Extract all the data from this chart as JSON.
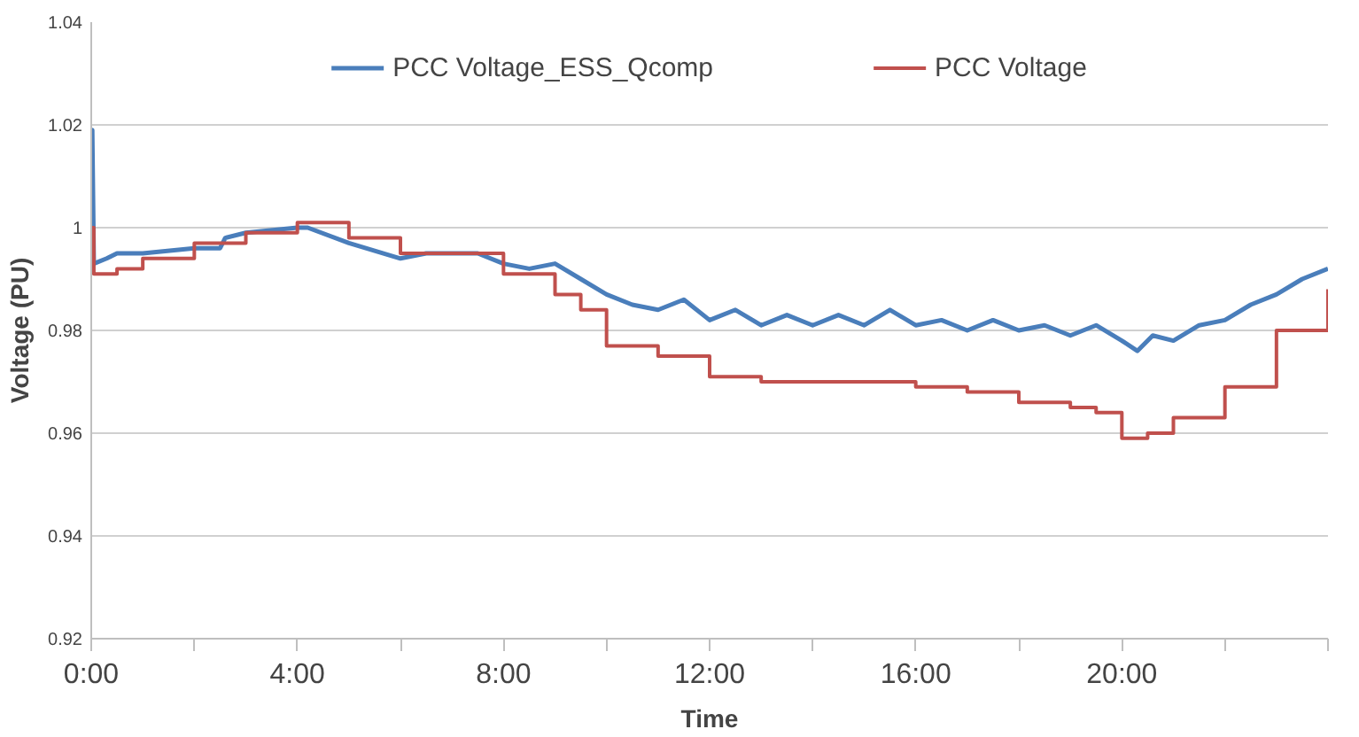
{
  "chart_data": {
    "type": "line",
    "xlabel": "Time",
    "ylabel": "Voltage (PU)",
    "xlim": [
      0,
      24
    ],
    "ylim": [
      0.92,
      1.04
    ],
    "xticks": [
      {
        "value": 0,
        "label": "0:00"
      },
      {
        "value": 2,
        "label": null
      },
      {
        "value": 4,
        "label": "4:00"
      },
      {
        "value": 6,
        "label": null
      },
      {
        "value": 8,
        "label": "8:00"
      },
      {
        "value": 10,
        "label": null
      },
      {
        "value": 12,
        "label": "12:00"
      },
      {
        "value": 14,
        "label": null
      },
      {
        "value": 16,
        "label": "16:00"
      },
      {
        "value": 18,
        "label": null
      },
      {
        "value": 20,
        "label": "20:00"
      },
      {
        "value": 22,
        "label": null
      },
      {
        "value": 24,
        "label": null
      }
    ],
    "yticks": [
      0.92,
      0.94,
      0.96,
      0.98,
      1,
      1.02,
      1.04
    ],
    "grid": "y",
    "legend": "top",
    "marker": "none",
    "line_style": "solid",
    "series": [
      {
        "name": "PCC Voltage_ESS_Qcomp",
        "color": "#4a7ebb",
        "x": [
          0,
          0.02,
          0.05,
          0.3,
          0.5,
          1,
          2,
          2.5,
          2.6,
          3,
          4,
          4.2,
          5,
          6,
          6.5,
          7,
          7.5,
          8,
          8.5,
          9,
          9.5,
          10,
          10.5,
          11,
          11.5,
          12,
          12.5,
          13,
          13.5,
          14,
          14.5,
          15,
          15.5,
          16,
          16.5,
          17,
          17.5,
          18,
          18.5,
          19,
          19.5,
          20,
          20.3,
          20.6,
          21,
          21.5,
          22,
          22.5,
          23,
          23.5,
          24
        ],
        "values": [
          1.0,
          1.019,
          0.993,
          0.994,
          0.995,
          0.995,
          0.996,
          0.996,
          0.998,
          0.999,
          1.0,
          1.0,
          0.997,
          0.994,
          0.995,
          0.995,
          0.995,
          0.993,
          0.992,
          0.993,
          0.99,
          0.987,
          0.985,
          0.984,
          0.986,
          0.982,
          0.984,
          0.981,
          0.983,
          0.981,
          0.983,
          0.981,
          0.984,
          0.981,
          0.982,
          0.98,
          0.982,
          0.98,
          0.981,
          0.979,
          0.981,
          0.978,
          0.976,
          0.979,
          0.978,
          0.981,
          0.982,
          0.985,
          0.987,
          0.99,
          0.992
        ]
      },
      {
        "name": "PCC Voltage",
        "type": "step",
        "color": "#c0504d",
        "x": [
          0,
          0.05,
          0.5,
          1,
          2,
          3,
          4,
          4.2,
          5,
          6,
          7,
          7.3,
          8,
          9,
          9.5,
          10,
          11,
          12,
          13,
          14,
          15,
          16,
          17,
          18,
          19,
          19.5,
          20,
          20.5,
          21,
          22,
          23,
          24
        ],
        "values": [
          1.0,
          0.991,
          0.992,
          0.994,
          0.997,
          0.999,
          1.001,
          1.001,
          0.998,
          0.995,
          0.995,
          0.995,
          0.991,
          0.987,
          0.984,
          0.977,
          0.975,
          0.971,
          0.97,
          0.97,
          0.97,
          0.969,
          0.968,
          0.966,
          0.965,
          0.964,
          0.959,
          0.96,
          0.963,
          0.969,
          0.98,
          0.988
        ]
      }
    ]
  }
}
